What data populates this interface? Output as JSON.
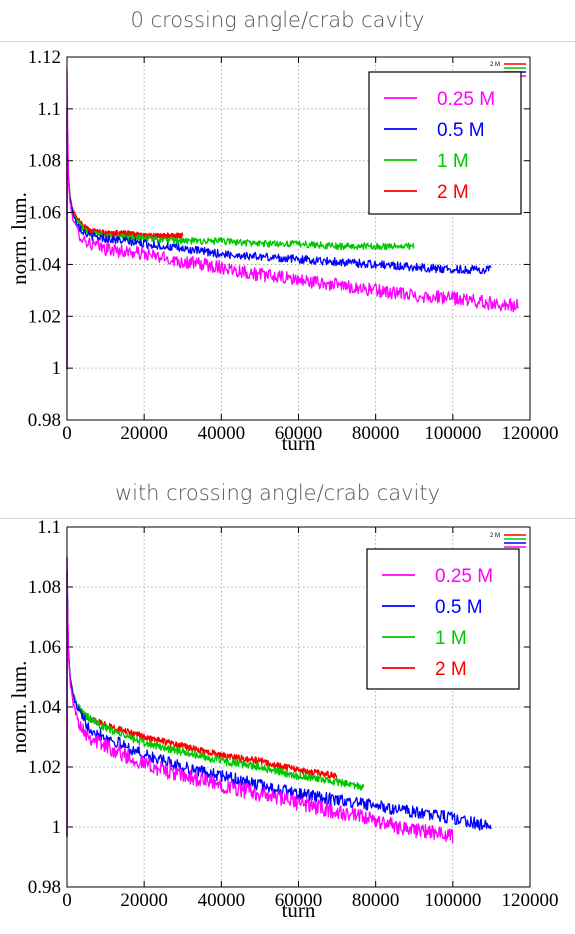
{
  "panels": [
    {
      "title": "0 crossing angle/crab cavity",
      "legend_title": "2 M",
      "chart_data": {
        "type": "line",
        "xlabel": "turn",
        "ylabel": "norm. lum.",
        "xlim": [
          0,
          120000
        ],
        "ylim": [
          0.98,
          1.12
        ],
        "xticks": [
          0,
          20000,
          40000,
          60000,
          80000,
          100000,
          120000
        ],
        "yticks": [
          0.98,
          1,
          1.02,
          1.04,
          1.06,
          1.08,
          1.1,
          1.12
        ],
        "grid": true,
        "legend_position": "top-right",
        "series": [
          {
            "name": "0.25 M",
            "color": "#ff00ff",
            "noise": 0.0026,
            "x": [
              0,
              300,
              800,
              1500,
              2500,
              4000,
              6000,
              10000,
              20000,
              30000,
              40000,
              50000,
              60000,
              70000,
              80000,
              90000,
              100000,
              110000,
              117000
            ],
            "y": [
              1.115,
              1.075,
              1.063,
              1.058,
              1.054,
              1.05,
              1.048,
              1.046,
              1.044,
              1.041,
              1.039,
              1.036,
              1.034,
              1.032,
              1.03,
              1.028,
              1.027,
              1.025,
              1.024
            ]
          },
          {
            "name": "0.5 M",
            "color": "#0000ff",
            "noise": 0.0016,
            "x": [
              0,
              300,
              800,
              1500,
              2500,
              4000,
              6000,
              10000,
              20000,
              30000,
              40000,
              50000,
              60000,
              70000,
              80000,
              90000,
              100000,
              110000
            ],
            "y": [
              1.1,
              1.075,
              1.065,
              1.06,
              1.056,
              1.053,
              1.051,
              1.05,
              1.048,
              1.046,
              1.044,
              1.043,
              1.042,
              1.041,
              1.04,
              1.039,
              1.038,
              1.038
            ]
          },
          {
            "name": "1 M",
            "color": "#00c800",
            "noise": 0.0013,
            "x": [
              0,
              300,
              800,
              1500,
              2500,
              4000,
              6000,
              10000,
              20000,
              30000,
              40000,
              50000,
              60000,
              70000,
              80000,
              90000
            ],
            "y": [
              1.1,
              1.075,
              1.065,
              1.06,
              1.057,
              1.054,
              1.052,
              1.051,
              1.05,
              1.049,
              1.049,
              1.048,
              1.048,
              1.047,
              1.047,
              1.047
            ]
          },
          {
            "name": "2 M",
            "color": "#ff0000",
            "noise": 0.0011,
            "x": [
              0,
              300,
              800,
              1500,
              2500,
              4000,
              6000,
              10000,
              15000,
              20000,
              25000,
              30000
            ],
            "y": [
              1.1,
              1.075,
              1.066,
              1.061,
              1.058,
              1.055,
              1.053,
              1.052,
              1.052,
              1.051,
              1.051,
              1.051
            ]
          }
        ]
      }
    },
    {
      "title": "with crossing angle/crab cavity",
      "legend_title": "2 M",
      "chart_data": {
        "type": "line",
        "xlabel": "turn",
        "ylabel": "norm. lum.",
        "xlim": [
          0,
          120000
        ],
        "ylim": [
          0.98,
          1.1
        ],
        "xticks": [
          0,
          20000,
          40000,
          60000,
          80000,
          100000,
          120000
        ],
        "yticks": [
          0.98,
          1,
          1.02,
          1.04,
          1.06,
          1.08,
          1.1
        ],
        "grid": true,
        "legend_position": "top-right",
        "series": [
          {
            "name": "0.25 M",
            "color": "#ff00ff",
            "noise": 0.0026,
            "x": [
              0,
              300,
              800,
              1500,
              2500,
              4000,
              6000,
              10000,
              20000,
              30000,
              40000,
              50000,
              60000,
              70000,
              80000,
              90000,
              100000
            ],
            "y": [
              1.09,
              1.06,
              1.048,
              1.042,
              1.037,
              1.033,
              1.03,
              1.027,
              1.021,
              1.017,
              1.014,
              1.011,
              1.008,
              1.005,
              1.002,
              0.999,
              0.997
            ]
          },
          {
            "name": "0.5 M",
            "color": "#0000ff",
            "noise": 0.002,
            "x": [
              0,
              300,
              800,
              1500,
              2500,
              4000,
              6000,
              10000,
              20000,
              30000,
              40000,
              50000,
              60000,
              70000,
              80000,
              90000,
              100000,
              110000
            ],
            "y": [
              1.09,
              1.06,
              1.05,
              1.044,
              1.04,
              1.036,
              1.033,
              1.03,
              1.024,
              1.02,
              1.017,
              1.014,
              1.011,
              1.009,
              1.007,
              1.005,
              1.003,
              1.0
            ]
          },
          {
            "name": "1 M",
            "color": "#00c800",
            "noise": 0.0013,
            "x": [
              0,
              300,
              800,
              1500,
              2500,
              4000,
              6000,
              10000,
              20000,
              30000,
              40000,
              50000,
              60000,
              70000,
              77000
            ],
            "y": [
              1.085,
              1.06,
              1.05,
              1.045,
              1.041,
              1.038,
              1.036,
              1.033,
              1.028,
              1.025,
              1.022,
              1.02,
              1.017,
              1.015,
              1.013
            ]
          },
          {
            "name": "2 M",
            "color": "#ff0000",
            "noise": 0.0011,
            "x": [
              0,
              300,
              800,
              1500,
              2500,
              4000,
              6000,
              10000,
              20000,
              30000,
              40000,
              50000,
              60000,
              70000
            ],
            "y": [
              1.085,
              1.06,
              1.05,
              1.045,
              1.041,
              1.038,
              1.036,
              1.034,
              1.03,
              1.027,
              1.024,
              1.022,
              1.019,
              1.017
            ]
          }
        ]
      }
    }
  ]
}
